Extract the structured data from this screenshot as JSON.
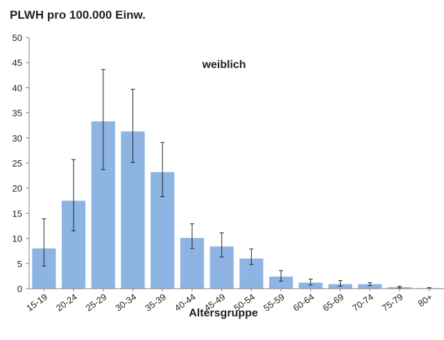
{
  "chart_data": {
    "type": "bar",
    "title": "PLWH pro 100.000 Einw.",
    "annotation": "weiblich",
    "xlabel": "Altersgruppe",
    "ylabel": "",
    "ylim": [
      0,
      50
    ],
    "yticks": [
      0,
      5,
      10,
      15,
      20,
      25,
      30,
      35,
      40,
      45,
      50
    ],
    "grid": false,
    "categories": [
      "15-19",
      "20-24",
      "25-29",
      "30-34",
      "35-39",
      "40-44",
      "45-49",
      "50-54",
      "55-59",
      "60-64",
      "65-69",
      "70-74",
      "75-79",
      "80+"
    ],
    "values": [
      8.0,
      17.5,
      33.3,
      31.3,
      23.2,
      10.1,
      8.4,
      6.0,
      2.4,
      1.2,
      0.9,
      0.9,
      0.3,
      0.1
    ],
    "error_low": [
      4.5,
      11.5,
      23.7,
      25.1,
      18.3,
      8.0,
      6.3,
      4.8,
      1.5,
      0.7,
      0.5,
      0.6,
      0.15,
      0.05
    ],
    "error_high": [
      13.9,
      25.7,
      43.6,
      39.7,
      29.1,
      12.9,
      11.1,
      7.9,
      3.6,
      1.9,
      1.6,
      1.2,
      0.5,
      0.2
    ],
    "colors": {
      "bar": "#8db4e2",
      "axis": "#7f7f7f",
      "error": "#222222"
    }
  }
}
